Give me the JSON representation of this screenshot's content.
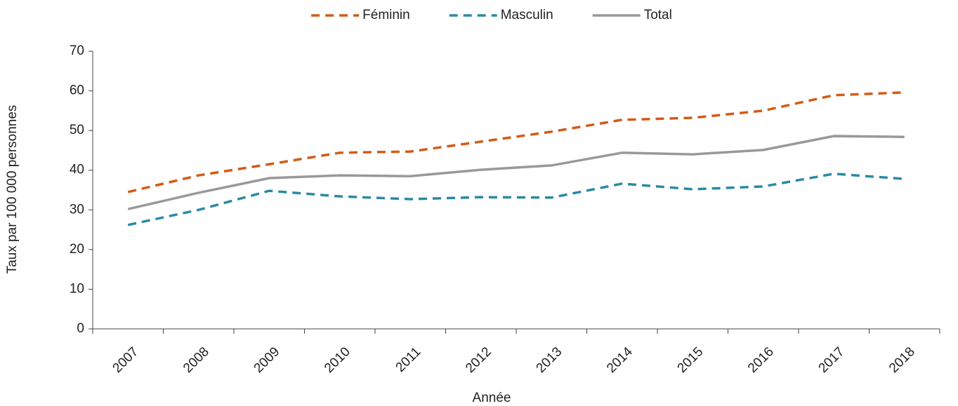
{
  "chart_data": {
    "type": "line",
    "x_label": "Année",
    "y_label": "Taux par 100 000 personnes",
    "categories": [
      "2007",
      "2008",
      "2009",
      "2010",
      "2011",
      "2012",
      "2013",
      "2014",
      "2015",
      "2016",
      "2017",
      "2018"
    ],
    "series": [
      {
        "name": "Féminin",
        "color": "#d35b17",
        "dashed": true,
        "values": [
          34.5,
          38.7,
          41.5,
          44.4,
          44.7,
          47.2,
          49.7,
          52.7,
          53.2,
          55.0,
          58.9,
          59.6
        ]
      },
      {
        "name": "Masculin",
        "color": "#2a8aa3",
        "dashed": true,
        "values": [
          26.2,
          30.0,
          34.8,
          33.4,
          32.7,
          33.2,
          33.1,
          36.6,
          35.2,
          35.9,
          39.1,
          37.8
        ]
      },
      {
        "name": "Total",
        "color": "#999999",
        "dashed": false,
        "values": [
          30.2,
          34.3,
          38.0,
          38.7,
          38.5,
          40.1,
          41.2,
          44.4,
          44.0,
          45.1,
          48.6,
          48.4
        ]
      }
    ],
    "ylim": [
      0,
      70
    ],
    "yticks": [
      0,
      10,
      20,
      30,
      40,
      50,
      60,
      70
    ],
    "grid": false,
    "legend": "top"
  }
}
